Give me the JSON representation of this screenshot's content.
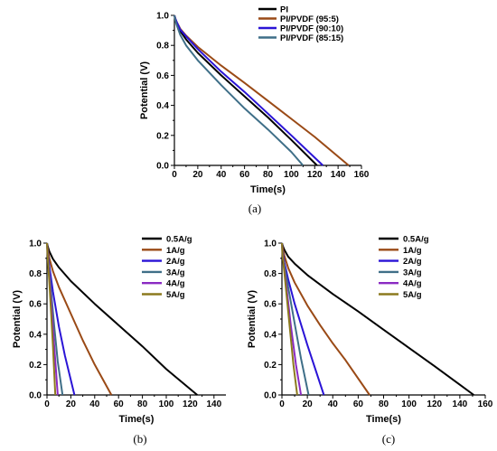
{
  "chart_data": [
    {
      "type": "line",
      "caption": "(a)",
      "xlabel": "Time(s)",
      "ylabel": "Potential (V)",
      "xlim": [
        0,
        160
      ],
      "ylim": [
        0,
        1.0
      ],
      "xticks": [
        0,
        20,
        40,
        60,
        80,
        100,
        120,
        140,
        160
      ],
      "yticks": [
        0.0,
        0.2,
        0.4,
        0.6,
        0.8,
        1.0
      ],
      "legend": "top-right",
      "series": [
        {
          "name": "PI",
          "color": "#000000",
          "x": [
            0,
            1,
            2,
            5,
            10,
            20,
            40,
            60,
            80,
            100,
            122
          ],
          "y": [
            1.0,
            0.97,
            0.945,
            0.895,
            0.84,
            0.75,
            0.6,
            0.46,
            0.32,
            0.17,
            0.0
          ]
        },
        {
          "name": "PI/PVDF (95:5)",
          "color": "#9a4a16",
          "x": [
            0,
            1,
            2,
            5,
            10,
            20,
            40,
            60,
            80,
            100,
            120,
            149
          ],
          "y": [
            1.0,
            0.975,
            0.955,
            0.91,
            0.865,
            0.79,
            0.665,
            0.55,
            0.43,
            0.31,
            0.19,
            0.0
          ]
        },
        {
          "name": "PI/PVDF (90:10)",
          "color": "#2a14d6",
          "x": [
            0,
            1,
            2,
            5,
            10,
            20,
            40,
            60,
            80,
            100,
            127
          ],
          "y": [
            1.0,
            0.975,
            0.955,
            0.905,
            0.86,
            0.775,
            0.625,
            0.49,
            0.345,
            0.2,
            0.0
          ]
        },
        {
          "name": "PI/PVDF (85:15)",
          "color": "#3f6f88",
          "x": [
            0,
            1,
            2,
            5,
            10,
            20,
            40,
            60,
            80,
            100,
            110
          ],
          "y": [
            1.0,
            0.96,
            0.935,
            0.87,
            0.8,
            0.7,
            0.535,
            0.38,
            0.24,
            0.09,
            0.0
          ]
        }
      ]
    },
    {
      "type": "line",
      "caption": "(b)",
      "xlabel": "Time(s)",
      "ylabel": "Potential (V)",
      "xlim": [
        0,
        150
      ],
      "ylim": [
        0,
        1.0
      ],
      "xticks": [
        0,
        20,
        40,
        60,
        80,
        100,
        120,
        140
      ],
      "yticks": [
        0.0,
        0.2,
        0.4,
        0.6,
        0.8,
        1.0
      ],
      "legend": "top-right",
      "series": [
        {
          "name": "0.5A/g",
          "color": "#000000",
          "x": [
            0,
            1,
            2,
            5,
            10,
            20,
            40,
            60,
            80,
            100,
            126
          ],
          "y": [
            1.0,
            0.97,
            0.945,
            0.895,
            0.84,
            0.75,
            0.6,
            0.46,
            0.32,
            0.17,
            0.0
          ]
        },
        {
          "name": "1A/g",
          "color": "#9a4a16",
          "x": [
            0,
            0.5,
            1,
            2,
            5,
            10,
            20,
            30,
            40,
            54
          ],
          "y": [
            1.0,
            0.97,
            0.945,
            0.9,
            0.815,
            0.71,
            0.535,
            0.36,
            0.2,
            0.0
          ]
        },
        {
          "name": "2A/g",
          "color": "#2a14d6",
          "x": [
            0,
            0.5,
            1,
            2,
            5,
            10,
            15,
            23
          ],
          "y": [
            1.0,
            0.95,
            0.91,
            0.85,
            0.68,
            0.45,
            0.26,
            0.0
          ]
        },
        {
          "name": "3A/g",
          "color": "#3f6f88",
          "x": [
            0,
            0.5,
            1,
            3,
            6,
            9,
            13
          ],
          "y": [
            1.0,
            0.94,
            0.9,
            0.72,
            0.46,
            0.22,
            0.0
          ]
        },
        {
          "name": "4A/g",
          "color": "#8a2ac2",
          "x": [
            0,
            0.5,
            1,
            2,
            4,
            6,
            9
          ],
          "y": [
            1.0,
            0.93,
            0.88,
            0.78,
            0.55,
            0.33,
            0.0
          ]
        },
        {
          "name": "5A/g",
          "color": "#8c7a1e",
          "x": [
            0,
            0.5,
            1,
            2,
            3,
            5,
            7
          ],
          "y": [
            1.0,
            0.92,
            0.86,
            0.74,
            0.6,
            0.32,
            0.0
          ]
        }
      ]
    },
    {
      "type": "line",
      "caption": "(c)",
      "xlabel": "Time(s)",
      "ylabel": "Potential (V)",
      "xlim": [
        0,
        160
      ],
      "ylim": [
        0,
        1.0
      ],
      "xticks": [
        0,
        20,
        40,
        60,
        80,
        100,
        120,
        140,
        160
      ],
      "yticks": [
        0.0,
        0.2,
        0.4,
        0.6,
        0.8,
        1.0
      ],
      "legend": "top-right",
      "series": [
        {
          "name": "0.5A/g",
          "color": "#000000",
          "x": [
            0,
            1,
            2,
            5,
            10,
            20,
            40,
            60,
            80,
            100,
            120,
            151
          ],
          "y": [
            1.0,
            0.975,
            0.955,
            0.91,
            0.865,
            0.79,
            0.665,
            0.55,
            0.43,
            0.31,
            0.19,
            0.0
          ]
        },
        {
          "name": "1A/g",
          "color": "#9a4a16",
          "x": [
            0,
            0.5,
            1,
            2,
            5,
            10,
            20,
            30,
            40,
            50,
            69
          ],
          "y": [
            1.0,
            0.975,
            0.95,
            0.915,
            0.835,
            0.74,
            0.59,
            0.46,
            0.34,
            0.23,
            0.0
          ]
        },
        {
          "name": "2A/g",
          "color": "#2a14d6",
          "x": [
            0,
            0.5,
            1,
            2,
            5,
            10,
            20,
            33
          ],
          "y": [
            1.0,
            0.95,
            0.92,
            0.87,
            0.76,
            0.6,
            0.33,
            0.0
          ]
        },
        {
          "name": "3A/g",
          "color": "#3f6f88",
          "x": [
            0,
            0.5,
            1,
            3,
            6,
            10,
            15,
            21
          ],
          "y": [
            1.0,
            0.94,
            0.9,
            0.8,
            0.66,
            0.47,
            0.24,
            0.0
          ]
        },
        {
          "name": "4A/g",
          "color": "#8a2ac2",
          "x": [
            0,
            0.5,
            1,
            2,
            4,
            7,
            11,
            15
          ],
          "y": [
            1.0,
            0.93,
            0.89,
            0.82,
            0.68,
            0.46,
            0.2,
            0.0
          ]
        },
        {
          "name": "5A/g",
          "color": "#8c7a1e",
          "x": [
            0,
            0.5,
            1,
            2,
            4,
            6,
            9,
            12
          ],
          "y": [
            1.0,
            0.92,
            0.88,
            0.8,
            0.63,
            0.46,
            0.2,
            0.0
          ]
        }
      ]
    }
  ]
}
